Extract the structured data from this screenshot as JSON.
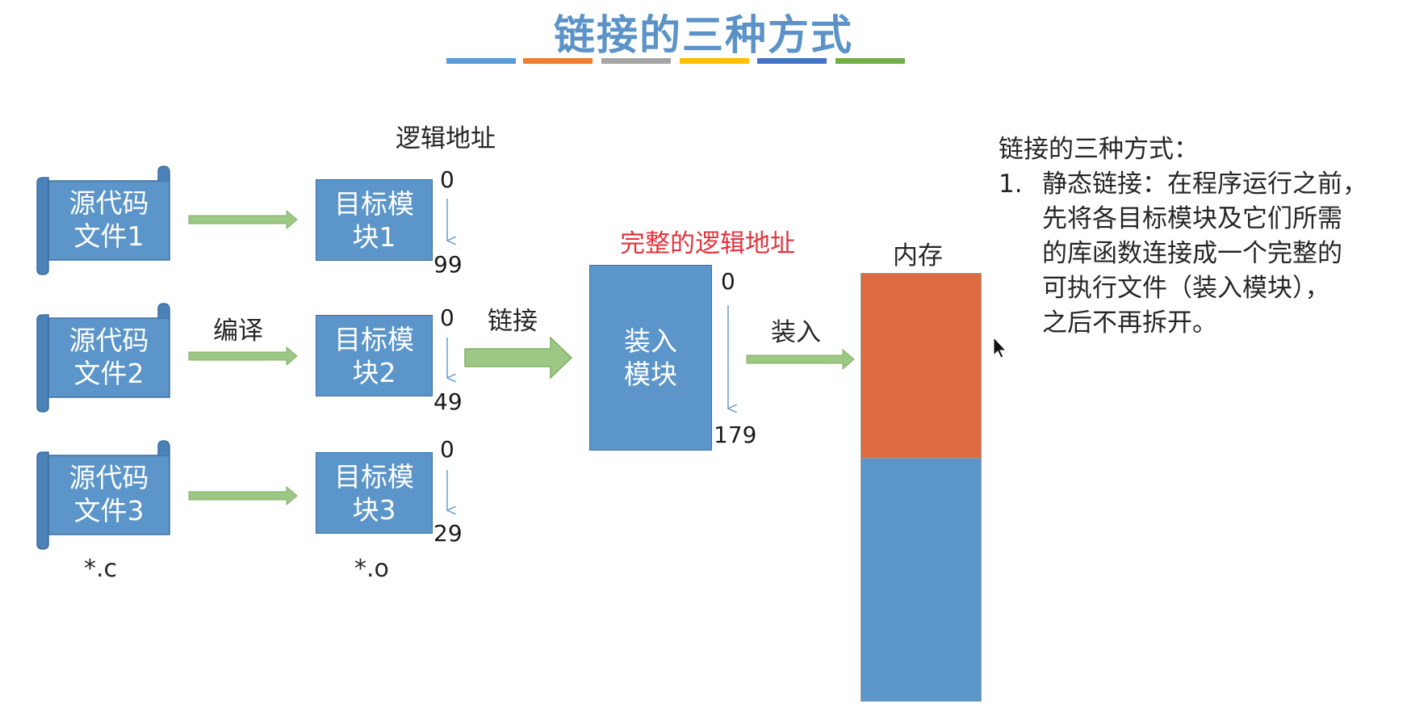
{
  "slide": {
    "watermark": "",
    "title": "链接的三种方式",
    "title_bar_colors": [
      "#5b9bd5",
      "#ed7d31",
      "#a5a5a5",
      "#ffc000",
      "#4472c4",
      "#70ad47"
    ]
  },
  "diagram": {
    "logical_address_label": "逻辑地址",
    "compile_label": "编译",
    "link_label": "链接",
    "complete_logical_address_label": "完整的逻辑地址",
    "load_label": "装入",
    "memory_label": "内存",
    "source_ext": "*.c",
    "object_ext": "*.o",
    "sources": [
      {
        "line1": "源代码",
        "line2": "文件1"
      },
      {
        "line1": "源代码",
        "line2": "文件2"
      },
      {
        "line1": "源代码",
        "line2": "文件3"
      }
    ],
    "modules": [
      {
        "line1": "目标模",
        "line2": "块1",
        "start": "0",
        "end": "99"
      },
      {
        "line1": "目标模",
        "line2": "块2",
        "start": "0",
        "end": "49"
      },
      {
        "line1": "目标模",
        "line2": "块3",
        "start": "0",
        "end": "29"
      }
    ],
    "load_module": {
      "line1": "装入",
      "line2": "模块",
      "start": "0",
      "end": "179"
    },
    "colors": {
      "box_blue": "#5b95c9",
      "memory_orange": "#dc6b40",
      "arrow_green": "#9dc784",
      "label_red": "#e1353e"
    }
  },
  "notes": {
    "heading": "链接的三种方式：",
    "items": [
      {
        "num": "1.",
        "lines": [
          "静态链接：在程序运行之前，",
          "先将各目标模块及它们所需",
          "的库函数连接成一个完整的",
          "可执行文件（装入模块），",
          "之后不再拆开。"
        ]
      }
    ]
  }
}
